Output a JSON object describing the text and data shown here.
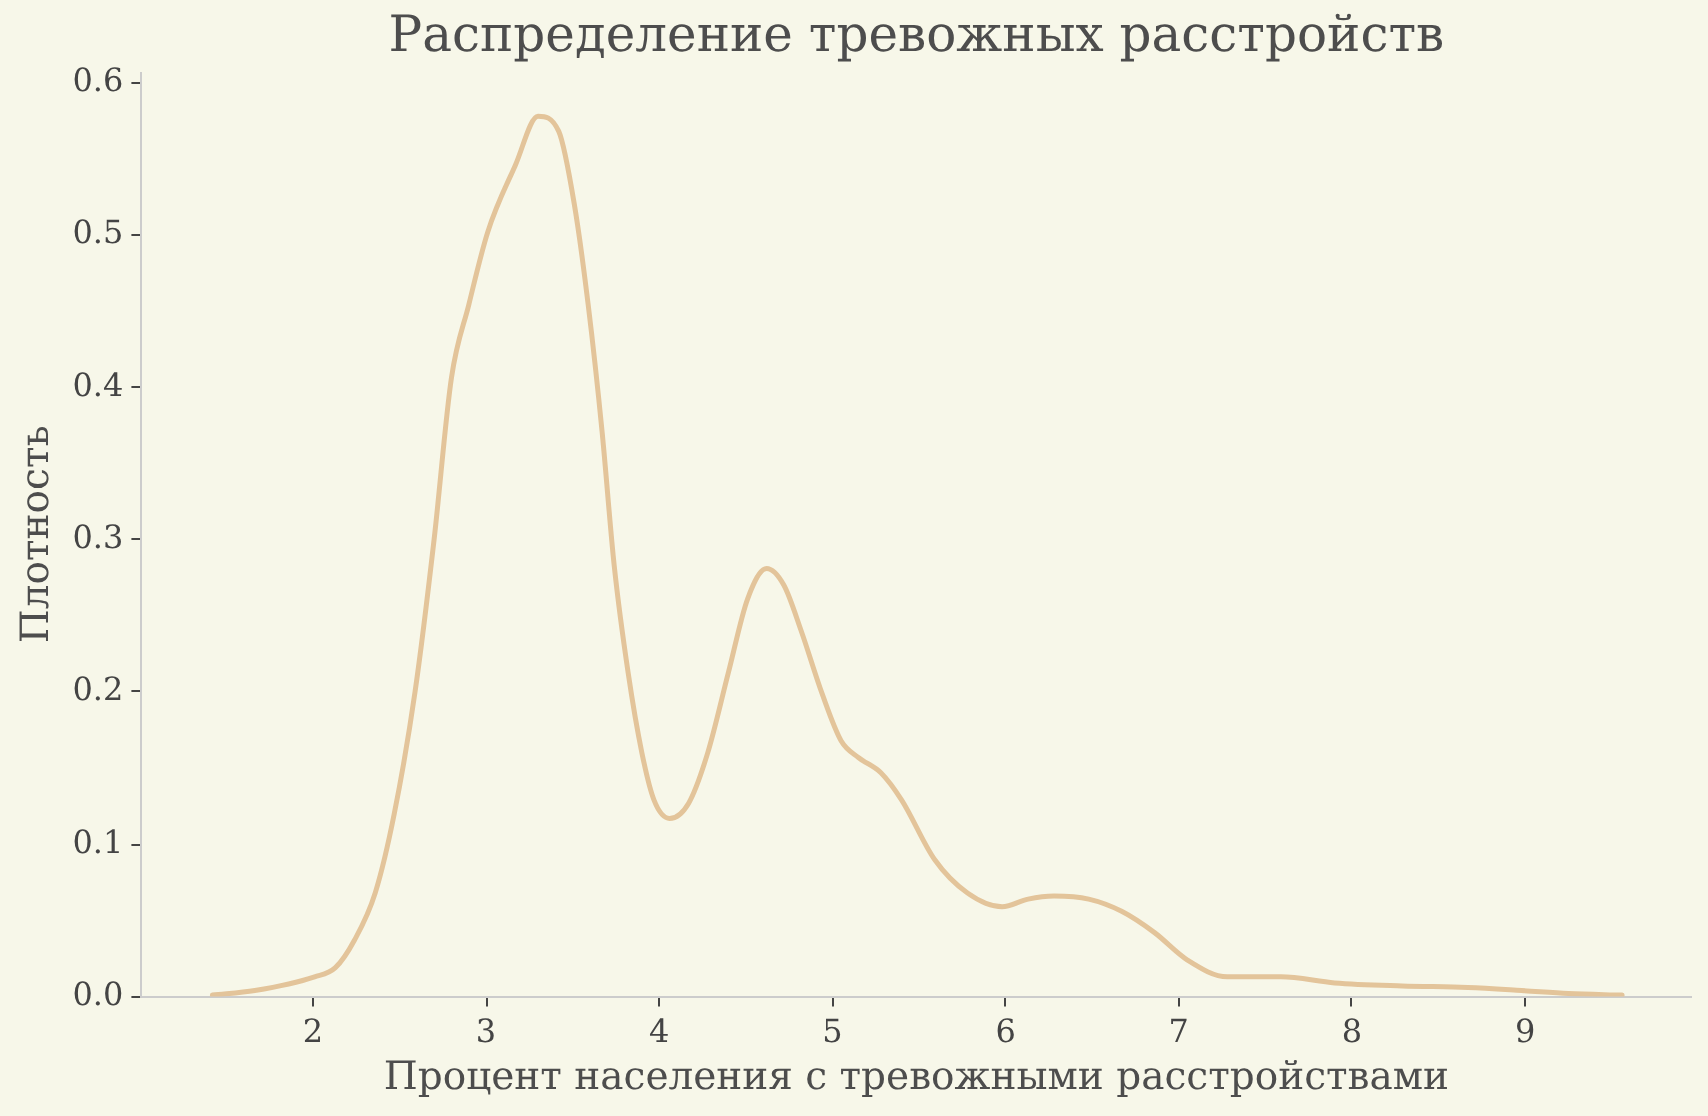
{
  "chart_data": {
    "type": "line",
    "title": "Распределение тревожных расстройств",
    "xlabel": "Процент населения с тревожными расстройствами",
    "ylabel": "Плотность",
    "x": [
      1.42,
      1.665,
      2.01,
      2.13,
      2.24,
      2.36,
      2.47,
      2.59,
      2.7,
      2.8,
      2.9,
      3.01,
      3.17,
      3.3,
      3.42,
      3.51,
      3.59,
      3.67,
      3.74,
      3.82,
      3.9,
      3.97,
      4.06,
      4.17,
      4.28,
      4.4,
      4.51,
      4.62,
      4.72,
      4.82,
      4.94,
      5.05,
      5.15,
      5.28,
      5.4,
      5.59,
      5.78,
      5.98,
      6.13,
      6.28,
      6.48,
      6.67,
      6.86,
      7.05,
      7.28,
      7.59,
      7.9,
      8.29,
      8.67,
      8.98,
      9.25,
      9.56
    ],
    "series": [
      {
        "color": "#e3c49a",
        "values": [
          0.001,
          0.004,
          0.013,
          0.019,
          0.037,
          0.068,
          0.12,
          0.2,
          0.3,
          0.406,
          0.454,
          0.502,
          0.546,
          0.578,
          0.568,
          0.52,
          0.454,
          0.371,
          0.283,
          0.213,
          0.16,
          0.129,
          0.117,
          0.127,
          0.16,
          0.213,
          0.261,
          0.281,
          0.27,
          0.24,
          0.199,
          0.168,
          0.157,
          0.147,
          0.129,
          0.09,
          0.068,
          0.059,
          0.064,
          0.066,
          0.064,
          0.056,
          0.042,
          0.024,
          0.013,
          0.013,
          0.009,
          0.007,
          0.006,
          0.004,
          0.002,
          0.001
        ]
      }
    ],
    "xlim": [
      1.01,
      9.96
    ],
    "xticks": [
      2,
      3,
      4,
      5,
      6,
      7,
      8,
      9
    ],
    "ylim": [
      0,
      0.607
    ],
    "yticks": [
      {
        "value": 0,
        "label": "0.0"
      },
      0.1,
      0.2,
      0.3,
      0.4,
      0.5,
      0.6
    ]
  }
}
